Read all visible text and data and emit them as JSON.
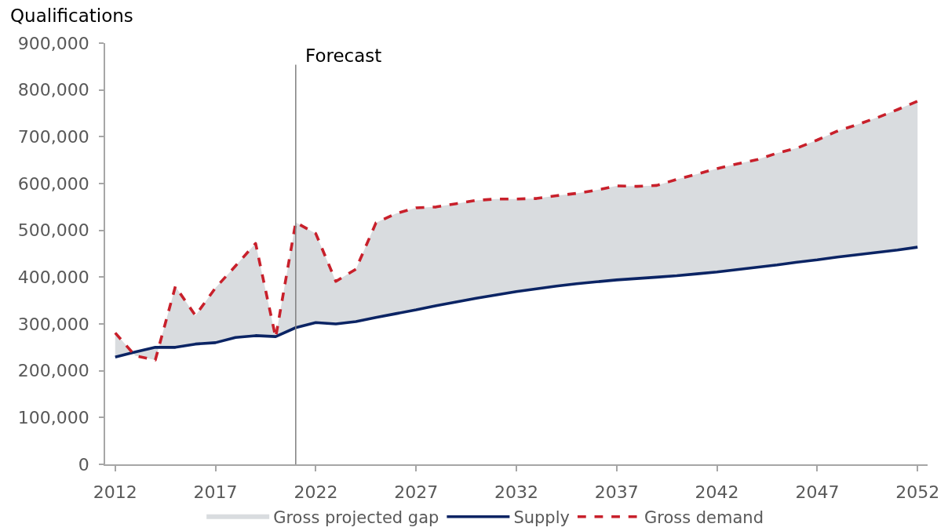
{
  "chart_data": {
    "type": "line",
    "ylabel": "Qualifications",
    "x": [
      2012,
      2013,
      2014,
      2015,
      2016,
      2017,
      2018,
      2019,
      2020,
      2021,
      2022,
      2023,
      2024,
      2025,
      2026,
      2027,
      2028,
      2029,
      2030,
      2031,
      2032,
      2033,
      2034,
      2035,
      2036,
      2037,
      2038,
      2039,
      2040,
      2041,
      2042,
      2043,
      2044,
      2045,
      2046,
      2047,
      2048,
      2049,
      2050,
      2051,
      2052
    ],
    "series": [
      {
        "name": "Gross projected gap",
        "type": "area",
        "color": "#d9dcdf",
        "values": [
          null,
          null,
          null,
          null,
          null,
          null,
          null,
          null,
          null,
          null,
          null,
          null,
          null,
          null,
          null,
          null,
          null,
          null,
          null,
          null,
          null,
          null,
          null,
          null,
          null,
          null,
          null,
          null,
          null,
          null,
          null,
          null,
          null,
          null,
          null,
          null,
          null,
          null,
          null,
          null,
          null
        ],
        "lower": [
          229000,
          240000,
          250000,
          250000,
          257000,
          260000,
          271000,
          275000,
          273000,
          292000,
          303000,
          300000,
          305000,
          314000,
          322000,
          330000,
          339000,
          347000,
          355000,
          362000,
          369000,
          375000,
          381000,
          386000,
          390000,
          394000,
          397000,
          400000,
          403000,
          407000,
          411000,
          416000,
          421000,
          426000,
          432000,
          437000,
          443000,
          448000,
          453000,
          458000,
          464000
        ],
        "upper": [
          281000,
          232000,
          223000,
          380000,
          318000,
          377000,
          424000,
          472000,
          271000,
          517000,
          493000,
          391000,
          417000,
          516000,
          536000,
          548000,
          550000,
          557000,
          564000,
          567000,
          567000,
          568000,
          574000,
          579000,
          586000,
          595000,
          594000,
          596000,
          609000,
          620000,
          632000,
          642000,
          651000,
          665000,
          676000,
          693000,
          712000,
          726000,
          741000,
          758000,
          776000
        ]
      },
      {
        "name": "Supply",
        "color": "#0b2464",
        "line_style": "solid",
        "values": [
          229000,
          240000,
          250000,
          250000,
          257000,
          260000,
          271000,
          275000,
          273000,
          292000,
          303000,
          300000,
          305000,
          314000,
          322000,
          330000,
          339000,
          347000,
          355000,
          362000,
          369000,
          375000,
          381000,
          386000,
          390000,
          394000,
          397000,
          400000,
          403000,
          407000,
          411000,
          416000,
          421000,
          426000,
          432000,
          437000,
          443000,
          448000,
          453000,
          458000,
          464000
        ]
      },
      {
        "name": "Gross demand",
        "color": "#c8202b",
        "line_style": "dashed",
        "values": [
          281000,
          232000,
          223000,
          380000,
          318000,
          377000,
          424000,
          472000,
          271000,
          517000,
          493000,
          391000,
          417000,
          516000,
          536000,
          548000,
          550000,
          557000,
          564000,
          567000,
          567000,
          568000,
          574000,
          579000,
          586000,
          595000,
          594000,
          596000,
          609000,
          620000,
          632000,
          642000,
          651000,
          665000,
          676000,
          693000,
          712000,
          726000,
          741000,
          758000,
          776000
        ]
      }
    ],
    "xlim": [
      2011.5,
      2052.5
    ],
    "xticks": [
      2012,
      2017,
      2022,
      2027,
      2032,
      2037,
      2042,
      2047,
      2052
    ],
    "ylim": [
      0,
      900000
    ],
    "yticks": [
      0,
      {
        "value": 100000,
        "label": "100,000"
      },
      {
        "value": 200000,
        "label": "200,000"
      },
      {
        "value": 300000,
        "label": "300,000"
      },
      {
        "value": 400000,
        "label": "400,000"
      },
      {
        "value": 500000,
        "label": "500,000"
      },
      {
        "value": 600000,
        "label": "600,000"
      },
      {
        "value": 700000,
        "label": "700,000"
      },
      {
        "value": 800000,
        "label": "800,000"
      },
      {
        "value": 900000,
        "label": "900,000"
      }
    ],
    "ref_lines": [
      {
        "axis": "x",
        "value": 2021,
        "label": "Forecast",
        "color": "#7f7f7f"
      }
    ],
    "legend": "bottom"
  }
}
